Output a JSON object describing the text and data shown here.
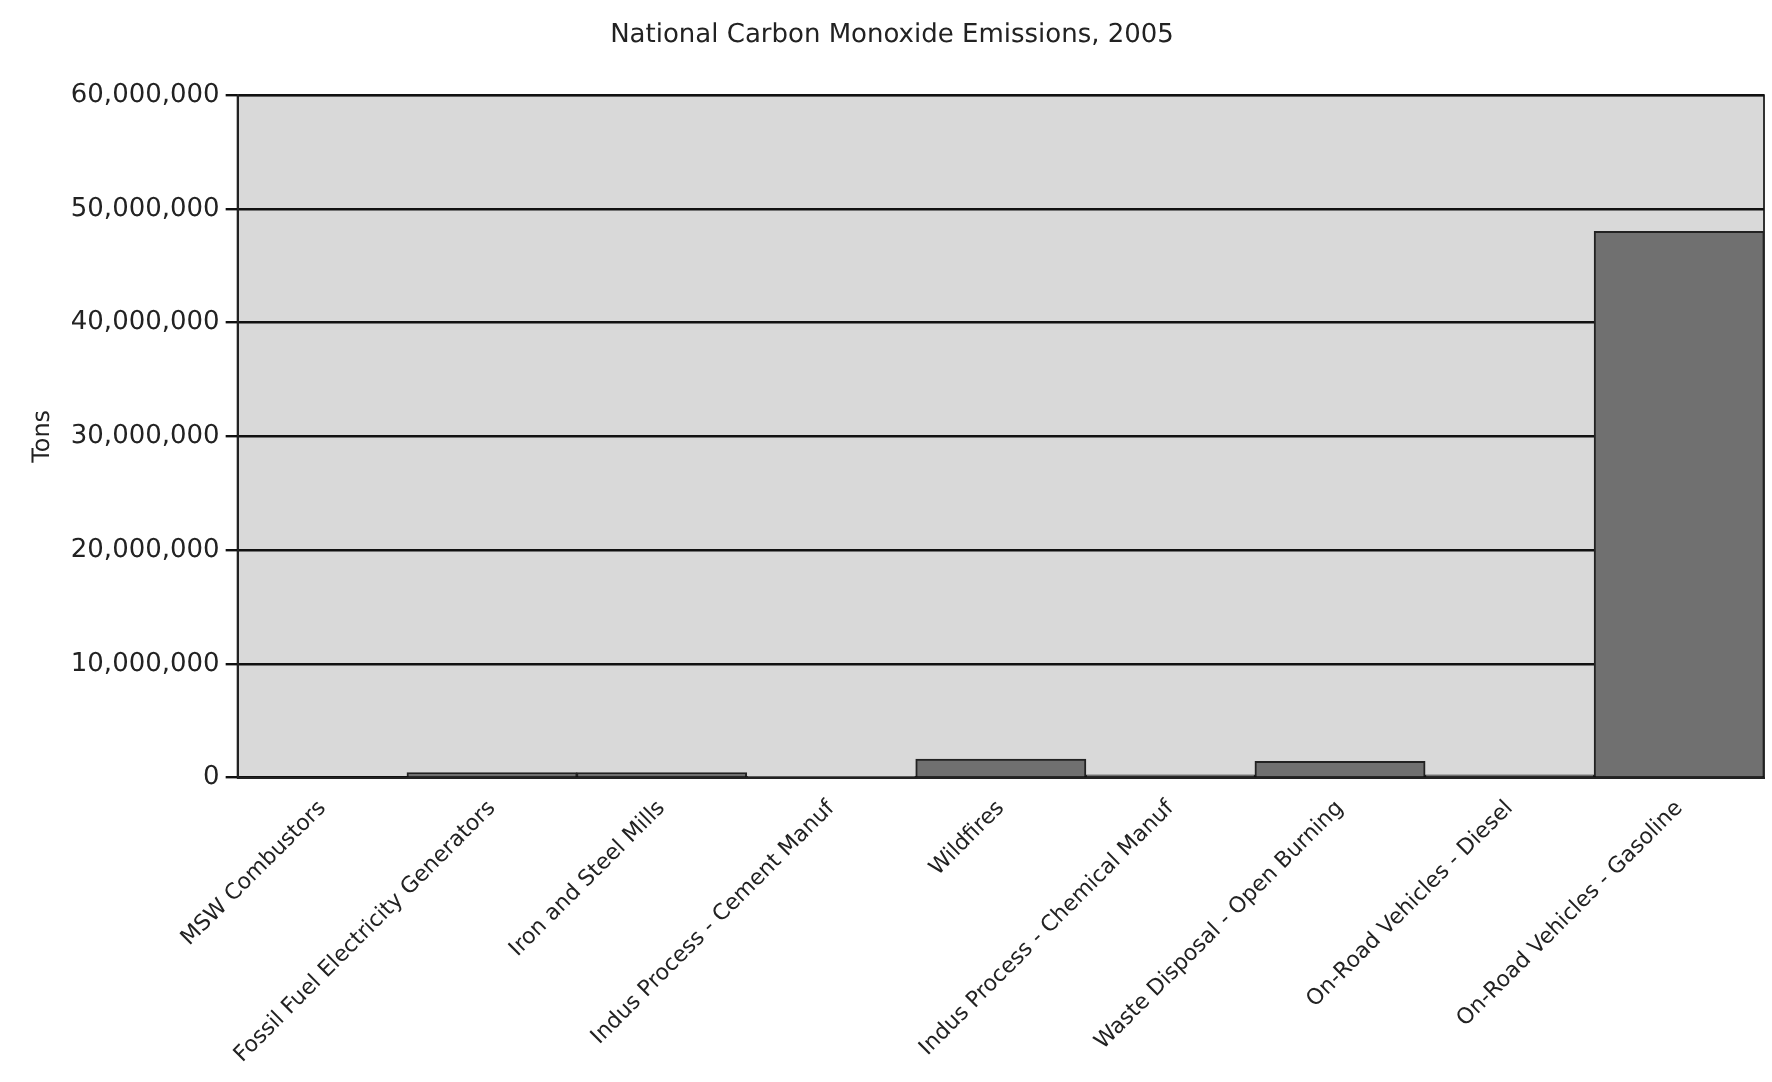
{
  "chart_data": {
    "type": "bar",
    "title": "National Carbon Monoxide Emissions, 2005",
    "ylabel": "Tons",
    "categories": [
      "MSW Combustors",
      "Fossil Fuel Electricity Generators",
      "Iron and Steel Mills",
      "Indus Process - Cement Manuf",
      "Wildfires",
      "Indus Process - Chemical Manuf",
      "Waste Disposal - Open Burning",
      "On-Road Vehicles - Diesel",
      "On-Road Vehicles - Gasoline"
    ],
    "values": [
      0,
      400000,
      400000,
      100000,
      1600000,
      200000,
      1400000,
      200000,
      48000000
    ],
    "color": "#707070",
    "ylim": [
      0,
      60000000
    ],
    "yticks": [
      0,
      {
        "value": 10000000,
        "label": "10,000,000"
      },
      {
        "value": 20000000,
        "label": "20,000,000"
      },
      {
        "value": 30000000,
        "label": "30,000,000"
      },
      {
        "value": 40000000,
        "label": "40,000,000"
      },
      {
        "value": 50000000,
        "label": "50,000,000"
      },
      {
        "value": 60000000,
        "label": "60,000,000"
      }
    ],
    "grid": "y",
    "legend": false
  }
}
